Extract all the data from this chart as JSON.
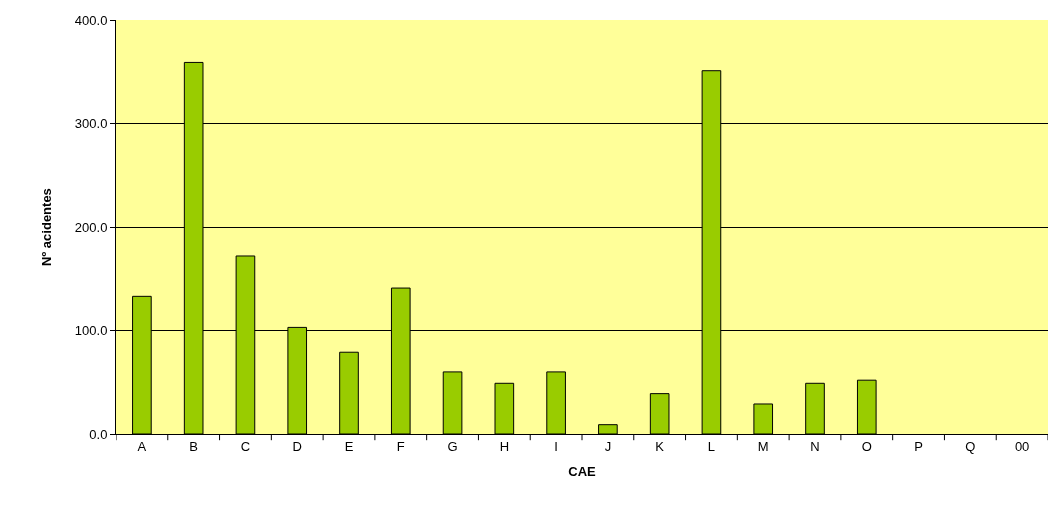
{
  "chart_data": {
    "type": "bar",
    "xlabel": "CAE",
    "ylabel": "Nº acidentes",
    "categories": [
      "A",
      "B",
      "C",
      "D",
      "E",
      "F",
      "G",
      "H",
      "I",
      "J",
      "K",
      "L",
      "M",
      "N",
      "O",
      "P",
      "Q",
      "00"
    ],
    "values": [
      133,
      359,
      172,
      103,
      79,
      141,
      60,
      49,
      60,
      9,
      39,
      351,
      29,
      49,
      52,
      0,
      0,
      0
    ],
    "color": "#99cc00",
    "ylim": [
      0,
      400
    ],
    "yticks": [
      {
        "value": 0,
        "label": "0.0"
      },
      {
        "value": 100,
        "label": "100.0"
      },
      {
        "value": 200,
        "label": "200.0"
      },
      {
        "value": 300,
        "label": "300.0"
      },
      {
        "value": 400,
        "label": "400.0"
      }
    ],
    "grid": "y"
  }
}
